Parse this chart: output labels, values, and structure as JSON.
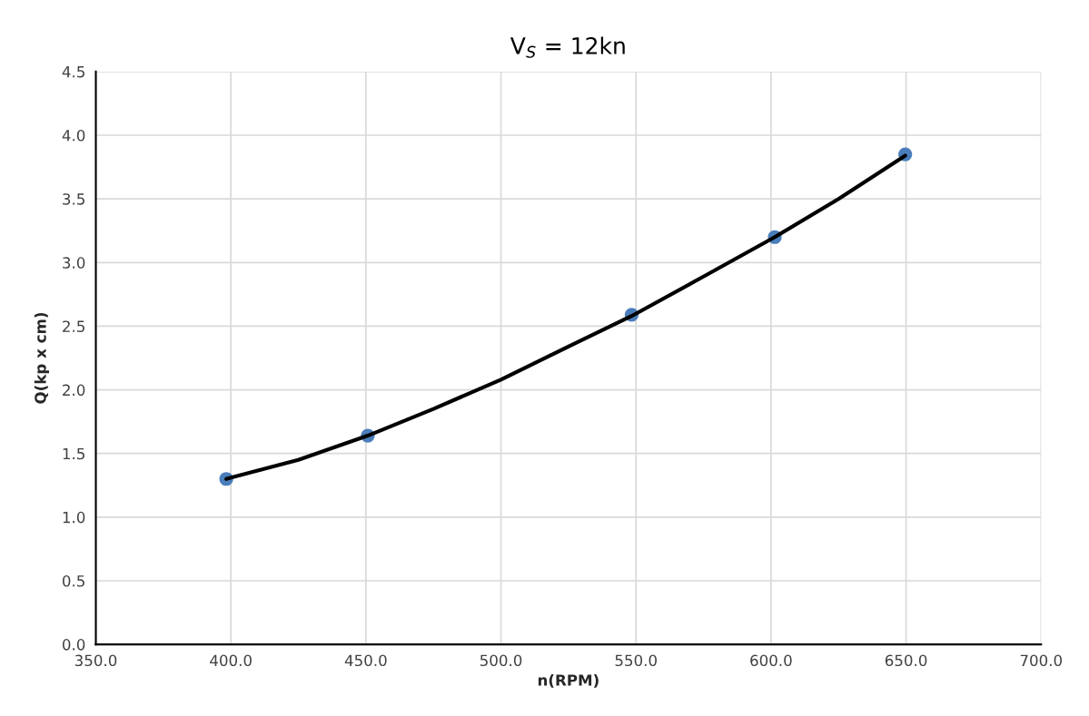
{
  "chart_data": {
    "type": "scatter",
    "title": "V$_{S}$ = 12kn",
    "xlabel": "n(RPM)",
    "ylabel": "Q(kp x cm)",
    "series": [
      {
        "color": "#4a7ebb",
        "x": [
          398.3,
          450.7,
          548.4,
          601.4,
          649.7
        ],
        "values": [
          1.3,
          1.64,
          2.59,
          3.2,
          3.85
        ],
        "marker": "circle"
      },
      {
        "type": "line",
        "color": "#000000",
        "x": [
          398.3,
          425,
          450.7,
          475,
          500,
          525,
          548.4,
          575,
          601.4,
          625,
          649.7
        ],
        "values": [
          1.3,
          1.45,
          1.64,
          1.85,
          2.08,
          2.34,
          2.58,
          2.89,
          3.2,
          3.5,
          3.84
        ],
        "marker": "none",
        "line_style": "solid"
      }
    ],
    "xlim": [
      350,
      700
    ],
    "xticks": [
      {
        "value": 350,
        "label": "350.0"
      },
      {
        "value": 400,
        "label": "400.0"
      },
      {
        "value": 450,
        "label": "450.0"
      },
      {
        "value": 500,
        "label": "500.0"
      },
      {
        "value": 550,
        "label": "550.0"
      },
      {
        "value": 600,
        "label": "600.0"
      },
      {
        "value": 650,
        "label": "650.0"
      },
      {
        "value": 700,
        "label": "700.0"
      }
    ],
    "ylim": [
      0,
      4.5
    ],
    "yticks": [
      {
        "value": 0,
        "label": "0.0"
      },
      {
        "value": 0.5,
        "label": "0.5"
      },
      {
        "value": 1,
        "label": "1.0"
      },
      {
        "value": 1.5,
        "label": "1.5"
      },
      {
        "value": 2,
        "label": "2.0"
      },
      {
        "value": 2.5,
        "label": "2.5"
      },
      {
        "value": 3,
        "label": "3.0"
      },
      {
        "value": 3.5,
        "label": "3.5"
      },
      {
        "value": 4,
        "label": "4.0"
      },
      {
        "value": 4.5,
        "label": "4.5"
      }
    ],
    "grid": true,
    "legend": false
  }
}
